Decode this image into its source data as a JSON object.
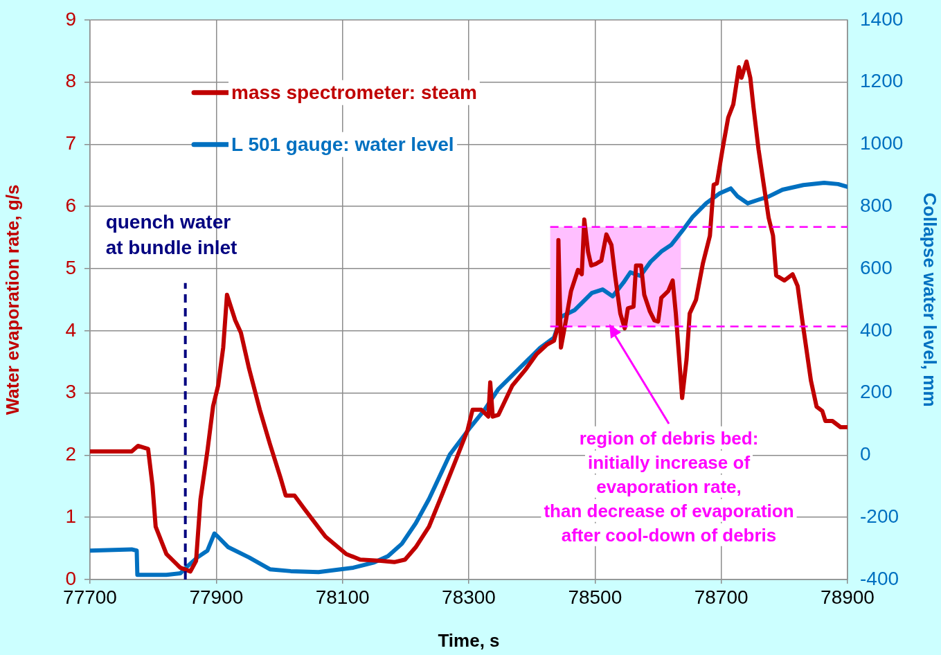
{
  "chart_data": {
    "type": "line",
    "xlabel": "Time, s",
    "ylabel": "Water evaporation rate, g/s",
    "y2label": "Collapse water level, mm",
    "xlim": [
      77700,
      78900
    ],
    "xticks": [
      77700,
      77900,
      78100,
      78300,
      78500,
      78700,
      78900
    ],
    "ylim": [
      0,
      9
    ],
    "yticks": [
      0,
      1,
      2,
      3,
      4,
      5,
      6,
      7,
      8,
      9
    ],
    "y2lim": [
      -400,
      1400
    ],
    "y2ticks": [
      -400,
      -200,
      0,
      200,
      400,
      600,
      800,
      1000,
      1200,
      1400
    ],
    "grid": true,
    "legend": "top left",
    "marker": "none",
    "line_style": "solid",
    "series": [
      {
        "name": "mass spectrometer: steam",
        "color": "#c00000",
        "x": [
          77700,
          77766,
          77776,
          77792,
          77799,
          77804,
          77821,
          77843,
          77859,
          77868,
          77875,
          77886,
          77895,
          77903,
          77911,
          77917,
          77930,
          77939,
          77952,
          77969,
          77985,
          78002,
          78010,
          78024,
          78040,
          78073,
          78106,
          78128,
          78161,
          78182,
          78199,
          78216,
          78237,
          78259,
          78281,
          78298,
          78306,
          78320,
          78331,
          78334,
          78338,
          78347,
          78369,
          78391,
          78407,
          78424,
          78435,
          78441,
          78442,
          78446,
          78452,
          78462,
          78473,
          78479,
          78483,
          78489,
          78494,
          78502,
          78510,
          78518,
          78526,
          78532,
          78540,
          78547,
          78552,
          78561,
          78565,
          78573,
          78578,
          78587,
          78594,
          78600,
          78605,
          78616,
          78623,
          78628,
          78638,
          78645,
          78650,
          78660,
          78671,
          78682,
          78688,
          78693,
          78702,
          78711,
          78719,
          78728,
          78732,
          78740,
          78746,
          78751,
          78759,
          78767,
          78775,
          78782,
          78787,
          78800,
          78813,
          78821,
          78829,
          78842,
          78851,
          78860,
          78865,
          78876,
          78889,
          78900
        ],
        "values": [
          2.06,
          2.06,
          2.15,
          2.1,
          1.51,
          0.85,
          0.41,
          0.19,
          0.13,
          0.3,
          1.29,
          2.07,
          2.79,
          3.12,
          3.73,
          4.58,
          4.17,
          3.97,
          3.39,
          2.73,
          2.18,
          1.63,
          1.35,
          1.35,
          1.13,
          0.69,
          0.41,
          0.32,
          0.3,
          0.28,
          0.32,
          0.52,
          0.85,
          1.4,
          1.96,
          2.4,
          2.73,
          2.73,
          2.62,
          3.17,
          2.62,
          2.65,
          3.12,
          3.39,
          3.62,
          3.78,
          3.84,
          4.06,
          5.46,
          3.73,
          4.06,
          4.64,
          4.98,
          4.91,
          5.79,
          5.27,
          5.05,
          5.08,
          5.13,
          5.55,
          5.38,
          4.87,
          4.28,
          4.04,
          4.36,
          4.39,
          5.05,
          5.05,
          4.58,
          4.31,
          4.17,
          4.15,
          4.53,
          4.64,
          4.81,
          4.28,
          2.92,
          3.54,
          4.28,
          4.5,
          5.09,
          5.53,
          6.35,
          6.37,
          6.92,
          7.43,
          7.64,
          8.24,
          8.07,
          8.33,
          8.07,
          7.6,
          6.92,
          6.37,
          5.82,
          5.53,
          4.89,
          4.81,
          4.91,
          4.72,
          4.12,
          3.2,
          2.78,
          2.71,
          2.55,
          2.55,
          2.45,
          2.45
        ]
      },
      {
        "name": "L 501 gauge: water level",
        "color": "#0070c0",
        "axis": "y2",
        "x": [
          77700,
          77766,
          77774,
          77775,
          77821,
          77843,
          77854,
          77870,
          77886,
          77897,
          77903,
          77919,
          77952,
          77985,
          78018,
          78062,
          78117,
          78150,
          78172,
          78194,
          78216,
          78237,
          78270,
          78303,
          78325,
          78347,
          78380,
          78413,
          78435,
          78446,
          78468,
          78495,
          78512,
          78528,
          78545,
          78556,
          78572,
          78588,
          78605,
          78621,
          78638,
          78654,
          78676,
          78698,
          78715,
          78726,
          78742,
          78758,
          78775,
          78797,
          78830,
          78863,
          78885,
          78900
        ],
        "values": [
          -307,
          -303,
          -307,
          -385,
          -385,
          -380,
          -358,
          -329,
          -307,
          -252,
          -263,
          -296,
          -329,
          -367,
          -373,
          -376,
          -362,
          -345,
          -325,
          -285,
          -219,
          -141,
          2,
          91,
          146,
          213,
          279,
          345,
          378,
          445,
          467,
          522,
          533,
          511,
          555,
          588,
          577,
          622,
          655,
          677,
          721,
          765,
          810,
          843,
          858,
          832,
          810,
          821,
          832,
          854,
          869,
          876,
          872,
          863
        ]
      }
    ],
    "ref_lines": [
      {
        "axis": "x",
        "value": 77851,
        "label": "quench water\nat bundle inlet",
        "color": "#000080",
        "line_style": "dashed"
      },
      {
        "axis": "y",
        "value": 5.67,
        "color": "#ff00ff",
        "line_style": "dashed"
      },
      {
        "axis": "y",
        "value": 4.07,
        "color": "#ff00ff",
        "line_style": "dashed"
      }
    ],
    "bands": [
      {
        "axis": "x",
        "from": 78429,
        "to": 78636,
        "color": "#ffbfff"
      }
    ],
    "annotations": [
      "region of debris bed:\ninitially increase of\nevaporation rate,\nthan decrease of evaporation\nafter cool-down of debris"
    ]
  }
}
